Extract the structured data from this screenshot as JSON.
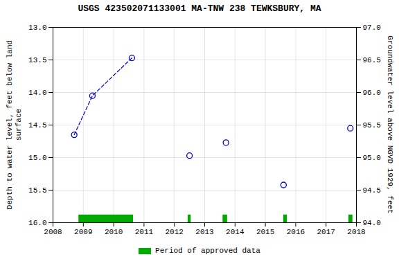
{
  "chart_data": {
    "type": "scatter",
    "title": "USGS 423502071133001 MA-TNW 238 TEWKSBURY, MA",
    "ylabel": "Depth to water level, feet below land\nsurface",
    "y2label": "Groundwater level above NGVD 1929, feet",
    "xlim": [
      2008,
      2018
    ],
    "xticks": [
      2008,
      2009,
      2010,
      2011,
      2012,
      2013,
      2014,
      2015,
      2016,
      2017,
      2018
    ],
    "ylim": [
      16.0,
      13.0
    ],
    "yticks": [
      {
        "value": 13.0,
        "label": "13.0"
      },
      {
        "value": 13.5,
        "label": "13.5"
      },
      {
        "value": 14.0,
        "label": "14.0"
      },
      {
        "value": 14.5,
        "label": "14.5"
      },
      {
        "value": 15.0,
        "label": "15.0"
      },
      {
        "value": 15.5,
        "label": "15.5"
      },
      {
        "value": 16.0,
        "label": "16.0"
      }
    ],
    "y2lim": [
      94.0,
      97.0
    ],
    "y2ticks": [
      {
        "value": 94.0,
        "label": "94.0"
      },
      {
        "value": 94.5,
        "label": "94.5"
      },
      {
        "value": 95.0,
        "label": "95.0"
      },
      {
        "value": 95.5,
        "label": "95.5"
      },
      {
        "value": 96.0,
        "label": "96.0"
      },
      {
        "value": 96.5,
        "label": "96.5"
      },
      {
        "value": 97.0,
        "label": "97.0"
      }
    ],
    "grid": true,
    "legend": "bottom",
    "series": [
      {
        "type": "line",
        "line_style": "dashed",
        "color": "#0000cc",
        "x": [
          2008.7,
          2009.3,
          2010.6
        ],
        "values": [
          14.65,
          14.05,
          13.47
        ]
      },
      {
        "type": "scatter",
        "marker": "o",
        "color": "#0000cc",
        "x": [
          2008.7,
          2009.3,
          2010.6,
          2012.5,
          2013.7,
          2015.6,
          2017.8
        ],
        "values": [
          14.65,
          14.05,
          13.47,
          14.97,
          14.77,
          15.42,
          14.55
        ]
      },
      {
        "type": "bar",
        "name": "Period of approved data",
        "color": "#00aa00",
        "y_range": [
          15.88,
          16.0
        ],
        "bars": [
          {
            "x_start": 2008.85,
            "x_end": 2010.65
          },
          {
            "x_start": 2012.45,
            "x_end": 2012.55
          },
          {
            "x_start": 2013.6,
            "x_end": 2013.75
          },
          {
            "x_start": 2015.6,
            "x_end": 2015.72
          },
          {
            "x_start": 2017.75,
            "x_end": 2017.88
          }
        ]
      }
    ]
  }
}
